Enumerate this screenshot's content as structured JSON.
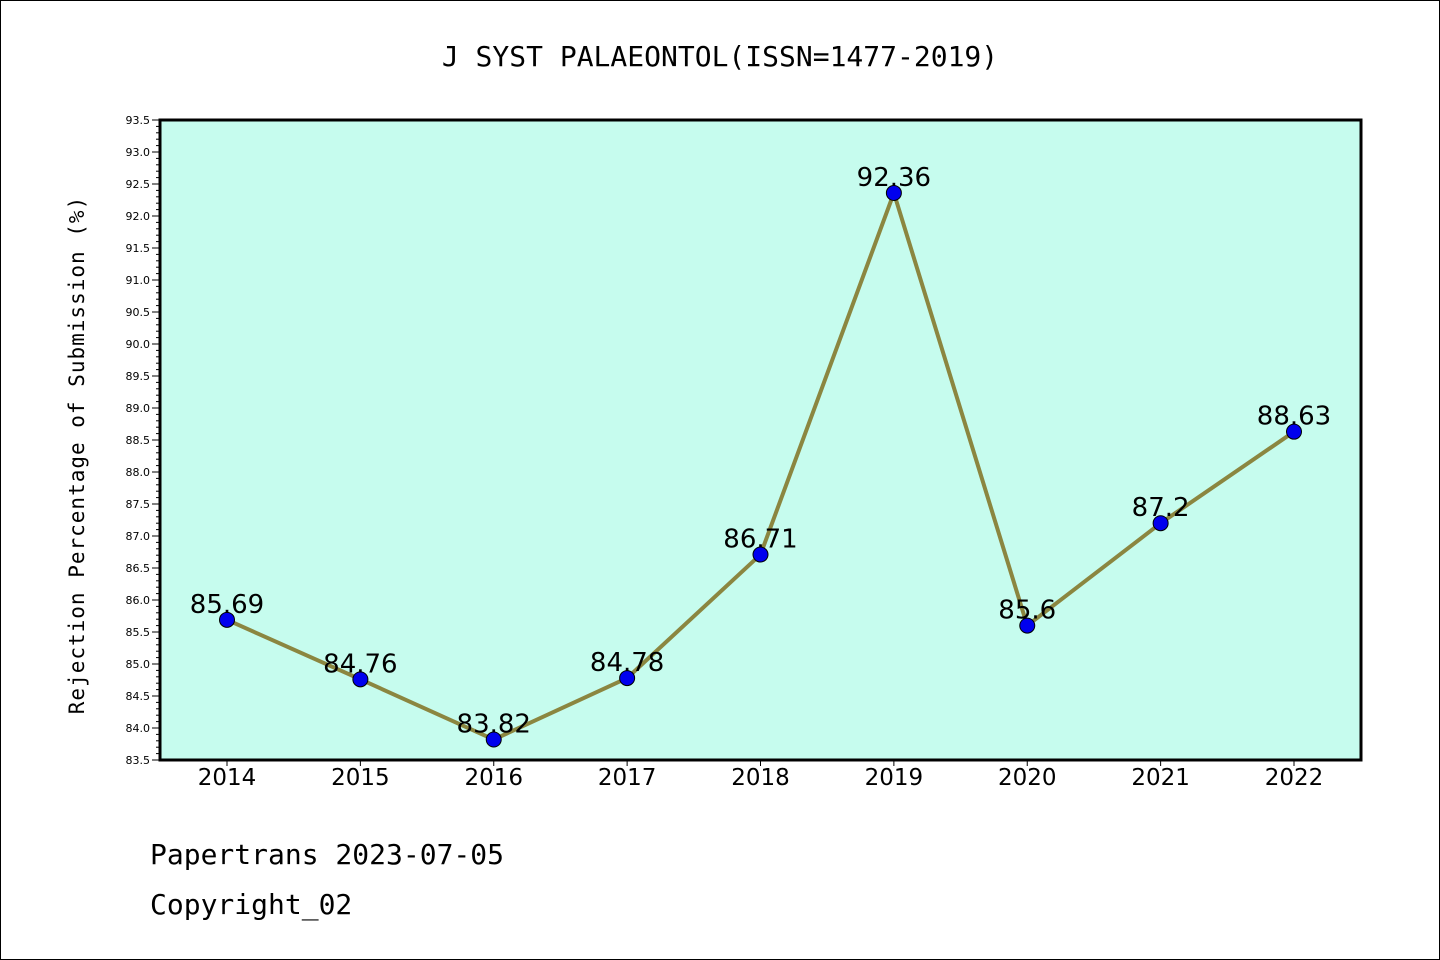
{
  "chart_data": {
    "type": "line",
    "title": "J SYST PALAEONTOL(ISSN=1477-2019)",
    "ylabel": "Rejection Percentage of Submission (%)",
    "xlabel": "",
    "categories": [
      "2014",
      "2015",
      "2016",
      "2017",
      "2018",
      "2019",
      "2020",
      "2021",
      "2022"
    ],
    "values": [
      85.69,
      84.76,
      83.82,
      84.78,
      86.71,
      92.36,
      85.6,
      87.2,
      88.63
    ],
    "data_labels": [
      "85.69",
      "84.76",
      "83.82",
      "84.78",
      "86.71",
      "92.36",
      "85.6",
      "87.2",
      "88.63"
    ],
    "ylim": [
      83.5,
      93.5
    ],
    "y_ticks": [
      "83.5",
      "84.0",
      "84.5",
      "85.0",
      "85.5",
      "86.0",
      "86.5",
      "87.0",
      "87.5",
      "88.0",
      "88.5",
      "89.0",
      "89.5",
      "90.0",
      "90.5",
      "91.0",
      "91.5",
      "92.0",
      "92.5",
      "93.0",
      "93.5"
    ],
    "grid": false,
    "colors": {
      "plot_background": "#c6fcee",
      "line": "#8b8640",
      "marker": "#0000ee"
    }
  },
  "footer": {
    "line1": "Papertrans 2023-07-05",
    "line2": "Copyright_02"
  }
}
